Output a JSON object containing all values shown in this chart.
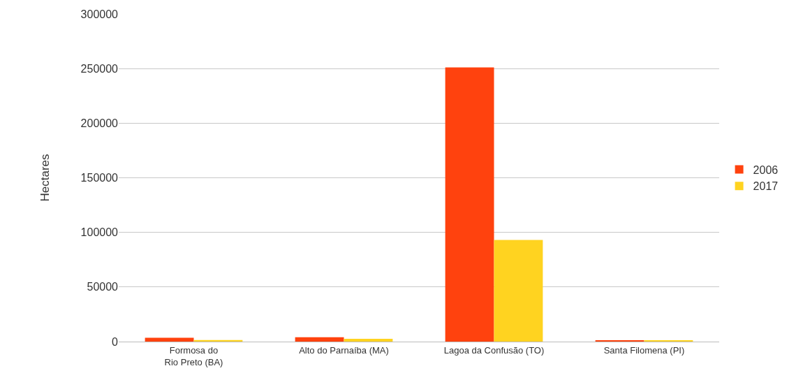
{
  "chart_data": {
    "type": "bar",
    "ylabel": "Hectares",
    "categories": [
      "Formosa do\nRio Preto (BA)",
      "Alto do Parnaíba (MA)",
      "Lagoa da Confusão (TO)",
      "Santa Filomena (PI)"
    ],
    "series": [
      {
        "name": "2006",
        "color": "#ff420e",
        "values": [
          3500,
          4000,
          251000,
          1200
        ]
      },
      {
        "name": "2017",
        "color": "#ffd320",
        "values": [
          1500,
          2500,
          93000,
          1000
        ]
      }
    ],
    "ylim": [
      0,
      300000
    ],
    "yticks": [
      0,
      50000,
      100000,
      150000,
      200000,
      250000,
      300000
    ],
    "grid": "y",
    "legend": "right"
  }
}
